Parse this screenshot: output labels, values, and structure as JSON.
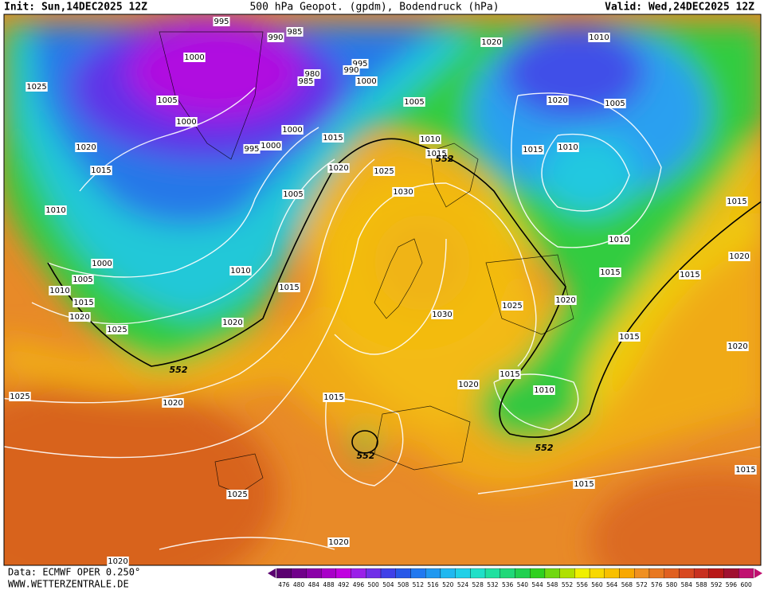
{
  "header": {
    "init": "Init: Sun,14DEC2025 12Z",
    "title": "500 hPa Geopot. (gpdm), Bodendruck (hPa)",
    "valid": "Valid: Wed,24DEC2025 12Z"
  },
  "isobar_labels": [
    "995",
    "985",
    "990",
    "1000",
    "995",
    "980",
    "990",
    "985",
    "1000",
    "1020",
    "1010",
    "1025",
    "1005",
    "1005",
    "1020",
    "1005",
    "1000",
    "1000",
    "1010",
    "1015",
    "1020",
    "995",
    "1000",
    "1015",
    "1010",
    "1015",
    "1020",
    "1015",
    "1025",
    "1030",
    "1005",
    "1015",
    "1010",
    "1010",
    "1020",
    "1000",
    "1010",
    "1015",
    "1015",
    "1005",
    "1015",
    "1010",
    "1020",
    "1025",
    "1015",
    "1030",
    "1020",
    "1025",
    "1020",
    "1015",
    "1020",
    "1015",
    "1020",
    "1010",
    "1025",
    "1015",
    "1020",
    "1015",
    "1015",
    "1025",
    "1020",
    "1020"
  ],
  "height_labels": [
    "552",
    "552",
    "552",
    "552"
  ],
  "footer": {
    "data": "Data: ECMWF OPER 0.250°",
    "url": "WWW.WETTERZENTRALE.DE"
  },
  "colorbar": {
    "labels": [
      "476",
      "480",
      "484",
      "488",
      "492",
      "496",
      "500",
      "504",
      "508",
      "512",
      "516",
      "520",
      "524",
      "528",
      "532",
      "536",
      "540",
      "544",
      "548",
      "552",
      "556",
      "560",
      "564",
      "568",
      "572",
      "576",
      "580",
      "584",
      "588",
      "592",
      "596",
      "600"
    ],
    "colors": [
      "#5a0070",
      "#70008a",
      "#8a00a8",
      "#a800c8",
      "#c000e0",
      "#9a20e8",
      "#7030e8",
      "#4040e8",
      "#2858e8",
      "#2078f0",
      "#2098f0",
      "#20b8f0",
      "#20d0e8",
      "#20e0c8",
      "#20e0a0",
      "#20d878",
      "#20d050",
      "#30d020",
      "#70d810",
      "#b0e000",
      "#f0f000",
      "#f8d800",
      "#f8c000",
      "#f8a800",
      "#f09020",
      "#e87820",
      "#e06020",
      "#d84820",
      "#c83020",
      "#b81818",
      "#a01030",
      "#c01070"
    ]
  }
}
